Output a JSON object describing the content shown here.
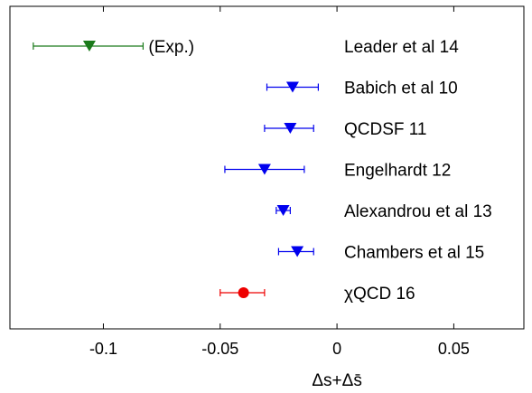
{
  "chart_data": {
    "type": "scatter",
    "title": "",
    "xlabel": "Δs+Δs̄",
    "ylabel": "",
    "xlim": [
      -0.14,
      0.08
    ],
    "xticks": [
      -0.1,
      -0.05,
      0,
      0.05
    ],
    "xtick_labels": [
      "-0.1",
      "-0.05",
      "0",
      "0.05"
    ],
    "grid": false,
    "entries": [
      {
        "label": "Leader et al 14",
        "x": -0.106,
        "xerr_low": 0.024,
        "xerr_high": 0.023,
        "marker": "triangle-down",
        "color": "#1a7a1a",
        "annotation": "(Exp.)"
      },
      {
        "label": "Babich et al 10",
        "x": -0.019,
        "xerr_low": 0.011,
        "xerr_high": 0.011,
        "marker": "triangle-down",
        "color": "#0000ee",
        "annotation": ""
      },
      {
        "label": "QCDSF 11",
        "x": -0.02,
        "xerr_low": 0.011,
        "xerr_high": 0.01,
        "marker": "triangle-down",
        "color": "#0000ee",
        "annotation": ""
      },
      {
        "label": "Engelhardt 12",
        "x": -0.031,
        "xerr_low": 0.017,
        "xerr_high": 0.017,
        "marker": "triangle-down",
        "color": "#0000ee",
        "annotation": ""
      },
      {
        "label": "Alexandrou et al 13",
        "x": -0.023,
        "xerr_low": 0.003,
        "xerr_high": 0.003,
        "marker": "triangle-down",
        "color": "#0000ee",
        "annotation": ""
      },
      {
        "label": "Chambers et al 15",
        "x": -0.017,
        "xerr_low": 0.008,
        "xerr_high": 0.007,
        "marker": "triangle-down",
        "color": "#0000ee",
        "annotation": ""
      },
      {
        "label": "χQCD 16",
        "x": -0.04,
        "xerr_low": 0.01,
        "xerr_high": 0.009,
        "marker": "circle",
        "color": "#ee0000",
        "annotation": ""
      }
    ]
  }
}
